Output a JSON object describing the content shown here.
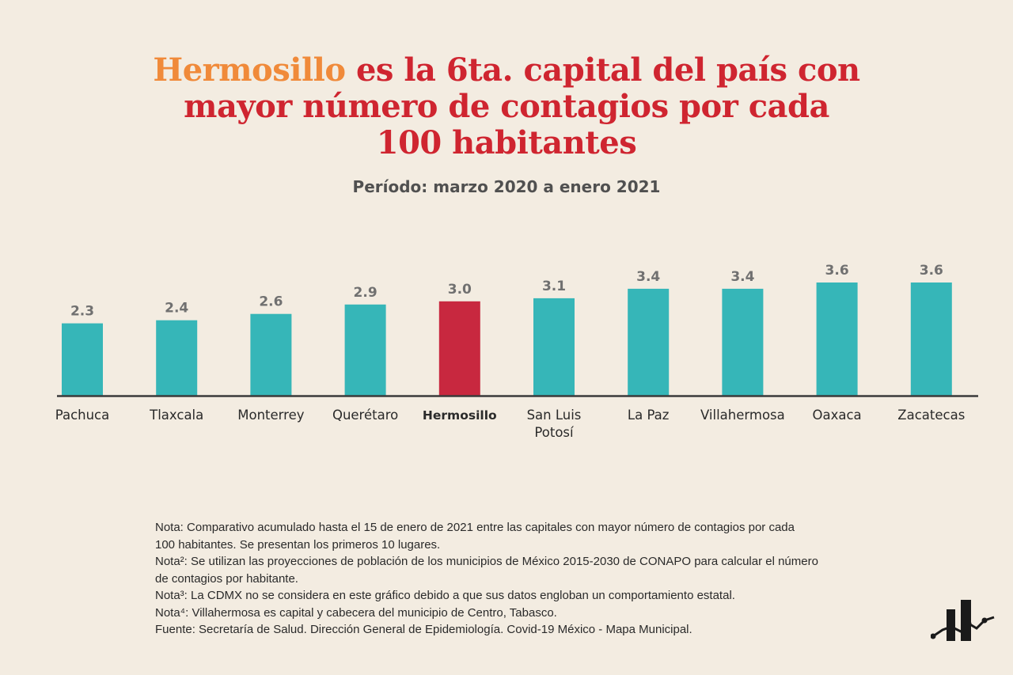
{
  "title": {
    "highlight": "Hermosillo",
    "line1_rest": " es la 6ta. capital del país con",
    "line2": "mayor número de contagios por cada",
    "line3": "100 habitantes"
  },
  "subtitle": "Período: marzo 2020 a enero 2021",
  "colors": {
    "background": "#f3ece1",
    "bar": "#36b6b8",
    "highlight_bar": "#c8283f",
    "title_red": "#cf2530",
    "title_orange": "#f08a3a",
    "value_label": "#707070",
    "axis": "#3a3a3a"
  },
  "chart_data": {
    "type": "bar",
    "categories": [
      "Pachuca",
      "Tlaxcala",
      "Monterrey",
      "Querétaro",
      "Hermosillo",
      "San Luis Potosí",
      "La Paz",
      "Villahermosa",
      "Oaxaca",
      "Zacatecas"
    ],
    "category_lines": [
      [
        "Pachuca"
      ],
      [
        "Tlaxcala"
      ],
      [
        "Monterrey"
      ],
      [
        "Querétaro"
      ],
      [
        "Hermosillo"
      ],
      [
        "San Luis",
        "Potosí"
      ],
      [
        "La Paz"
      ],
      [
        "Villahermosa"
      ],
      [
        "Oaxaca"
      ],
      [
        "Zacatecas"
      ]
    ],
    "values": [
      2.3,
      2.4,
      2.6,
      2.9,
      3.0,
      3.1,
      3.4,
      3.4,
      3.6,
      3.6
    ],
    "value_labels": [
      "2.3",
      "2.4",
      "2.6",
      "2.9",
      "3.0",
      "3.1",
      "3.4",
      "3.4",
      "3.6",
      "3.6"
    ],
    "highlight_index": 4,
    "ylim": [
      0,
      3.6
    ],
    "grid": false
  },
  "notes": [
    "Nota: Comparativo acumulado hasta el 15 de enero de 2021 entre las capitales con mayor número de contagios por cada",
    "100 habitantes. Se presentan los primeros 10 lugares.",
    "Nota²: Se utilizan las proyecciones de población de los municipios de México 2015-2030 de CONAPO para calcular el número",
    "de contagios por habitante.",
    "Nota³: La CDMX no se considera en este gráfico debido a que sus datos engloban un comportamiento estatal.",
    "Nota⁴: Villahermosa es capital y cabecera del municipio de Centro, Tabasco.",
    "Fuente: Secretaría de Salud. Dirección General de Epidemiología. Covid-19 México - Mapa Municipal."
  ],
  "logo_icon": "bar-chart-logo-icon"
}
